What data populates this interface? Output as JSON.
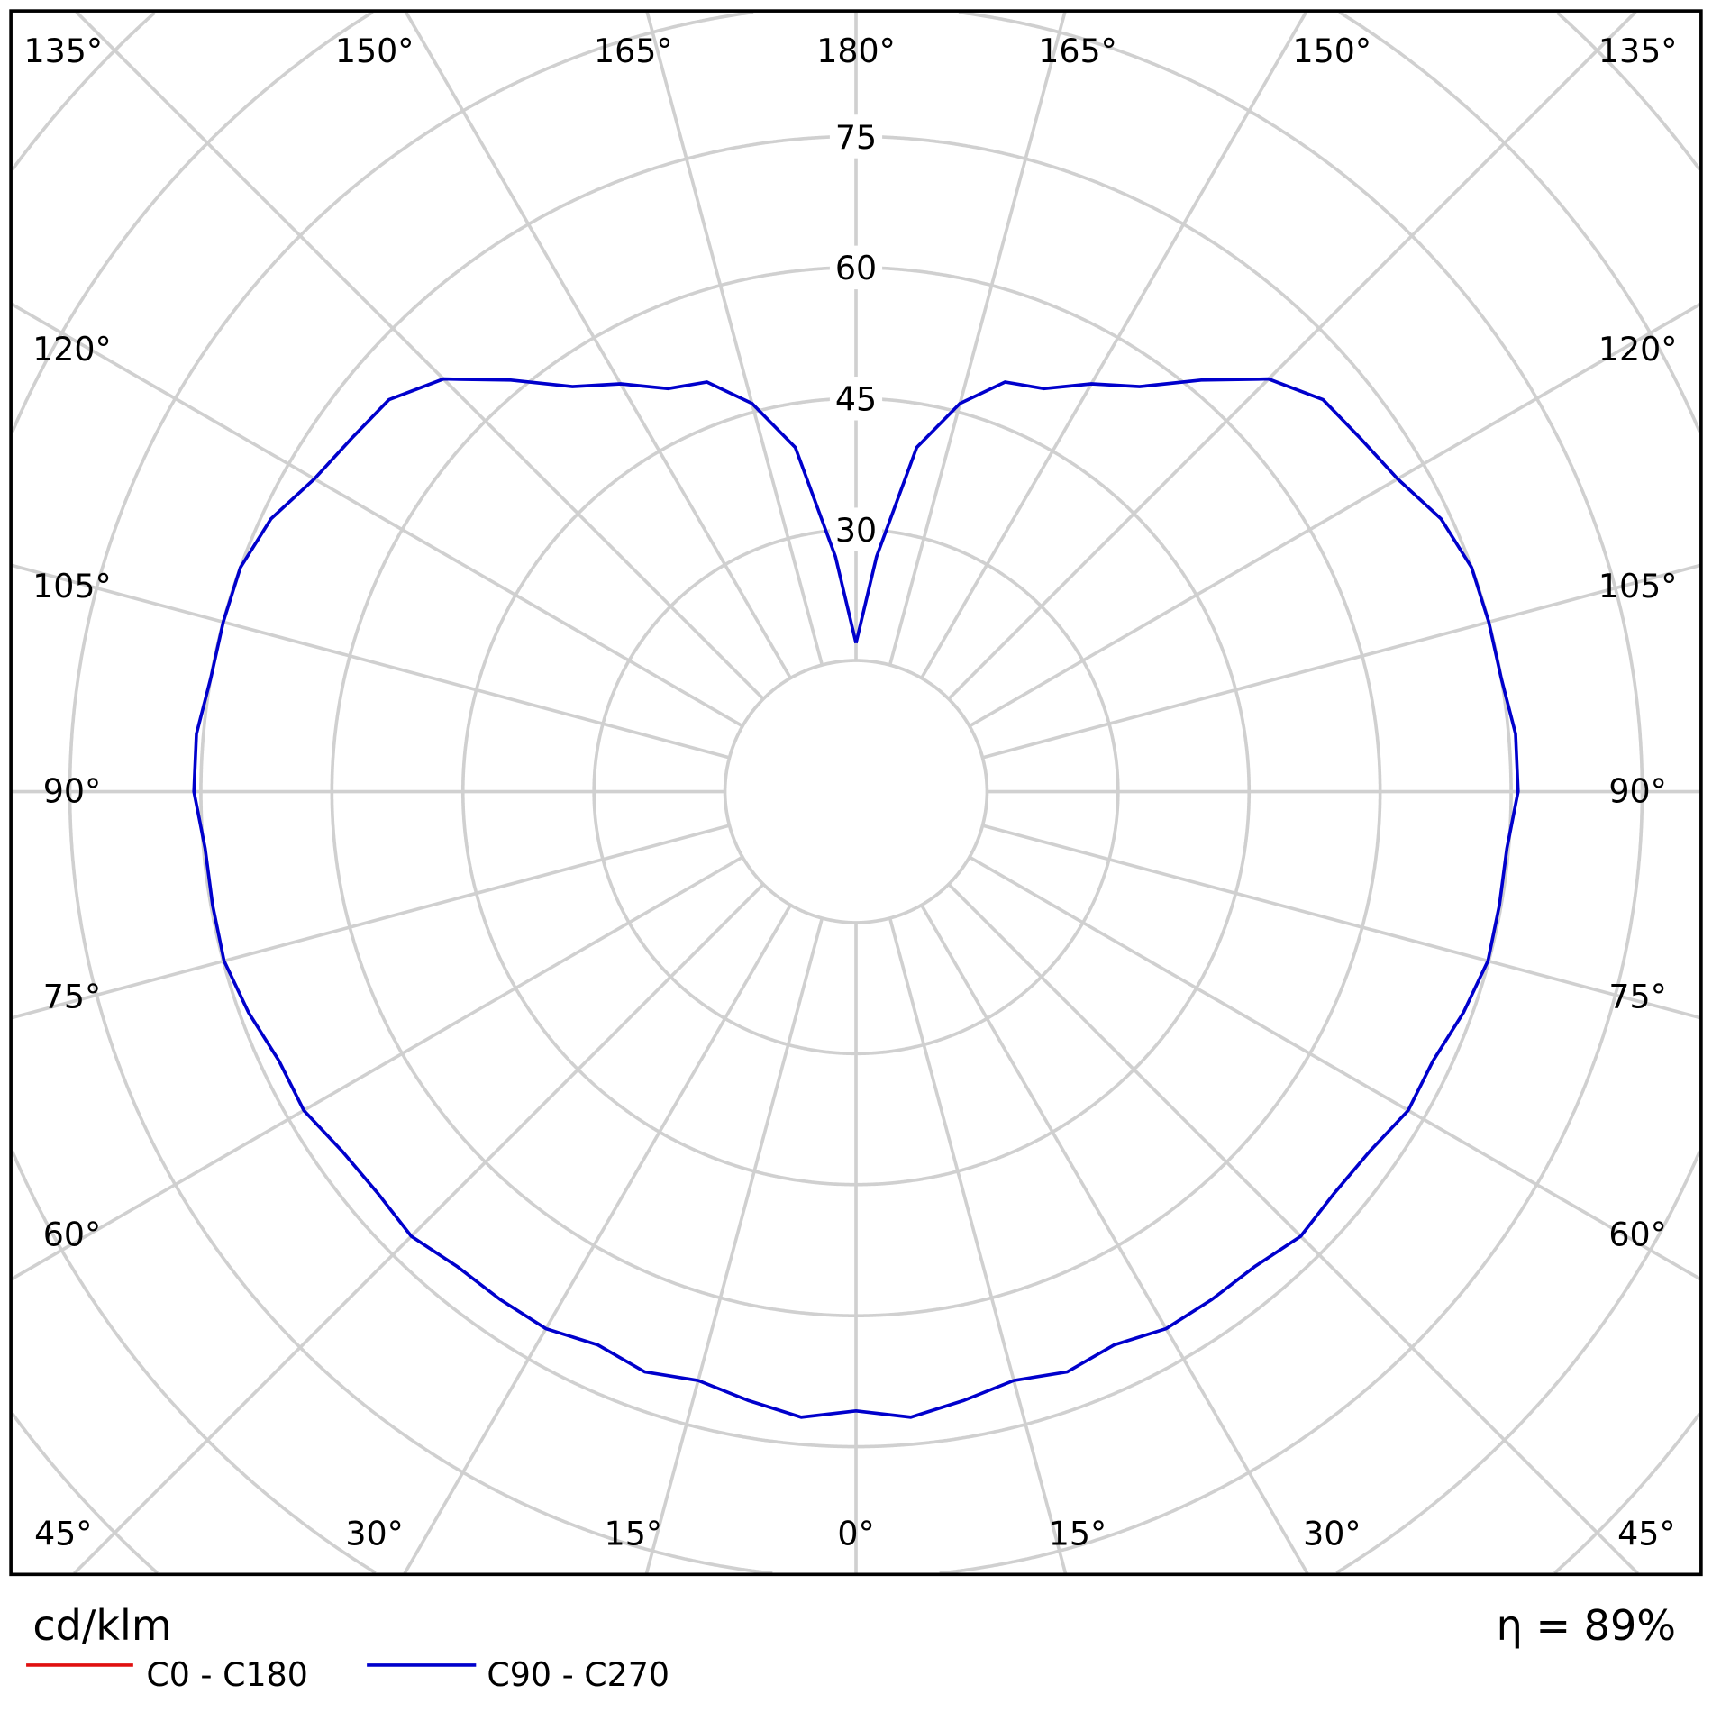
{
  "chart_data": {
    "type": "line",
    "subtype": "polar",
    "unit": "cd/klm",
    "efficiency_label": "η = 89%",
    "radial_ticks": [
      30,
      45,
      60,
      75
    ],
    "radial_range": [
      0,
      105
    ],
    "angle_labels": {
      "top": [
        "135°",
        "150°",
        "165°",
        "180°",
        "165°",
        "150°",
        "135°"
      ],
      "left": [
        "120°",
        "105°",
        "90°",
        "75°",
        "60°"
      ],
      "right": [
        "120°",
        "105°",
        "90°",
        "75°",
        "60°"
      ],
      "bottom": [
        "45°",
        "30°",
        "15°",
        "0°",
        "15°",
        "30°",
        "45°"
      ]
    },
    "grid": true,
    "legend_position": "bottom-left",
    "series": [
      {
        "name": "C0 - C180",
        "color": "#e01010",
        "gamma": [],
        "values": []
      },
      {
        "name": "C90 - C270",
        "color": "#0000cc",
        "gamma": [
          0,
          5,
          10,
          15,
          20,
          25,
          30,
          35,
          40,
          45,
          50,
          55,
          60,
          65,
          70,
          75,
          80,
          85,
          90,
          95,
          100,
          105,
          110,
          115,
          120,
          125,
          130,
          135,
          140,
          145,
          150,
          155,
          160,
          165,
          170,
          175,
          180
        ],
        "values": [
          70.9,
          71.9,
          70.8,
          69.8,
          70.7,
          69.9,
          71,
          71,
          71,
          72,
          71.5,
          71.8,
          73,
          72.9,
          74,
          74.9,
          74.8,
          74.8,
          75.8,
          75.8,
          75,
          75,
          75,
          73.9,
          71.6,
          70.5,
          69.8,
          66.8,
          61.5,
          56.6,
          53.9,
          50.9,
          49.9,
          46,
          40,
          27,
          17
        ]
      }
    ]
  }
}
